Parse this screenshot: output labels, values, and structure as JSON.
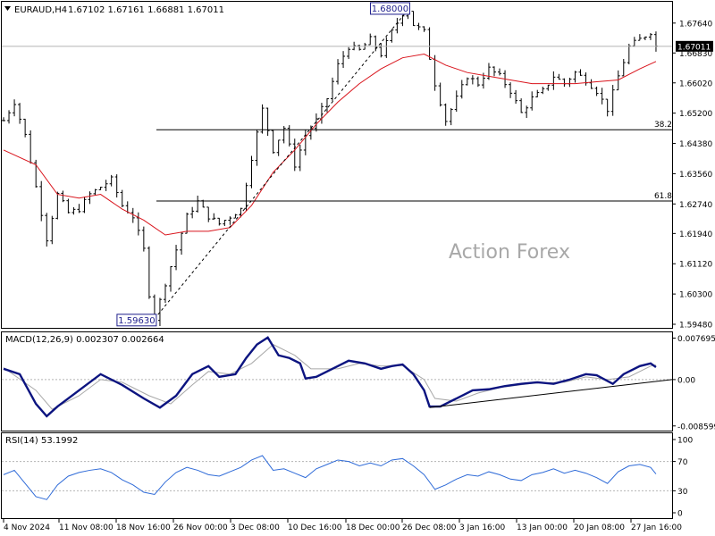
{
  "chart_data": [
    {
      "type": "ohlc",
      "panel": "price",
      "title": "EURAUD,H4",
      "ohlc_header": [
        "1.67102",
        "1.67161",
        "1.66881",
        "1.67011"
      ],
      "current_price": "1.67011",
      "ylim": [
        1.5948,
        1.6812
      ],
      "y_ticks": [
        "1.67640",
        "1.66830",
        "1.66020",
        "1.65200",
        "1.64380",
        "1.63560",
        "1.62740",
        "1.61940",
        "1.61120",
        "1.60300",
        "1.59480"
      ],
      "x_ticks": [
        "4 Nov 2024",
        "11 Nov 08:00",
        "18 Nov 16:00",
        "26 Nov 00:00",
        "3 Dec 08:00",
        "10 Dec 16:00",
        "18 Dec 00:00",
        "26 Dec 08:00",
        "3 Jan 16:00",
        "13 Jan 00:00",
        "20 Jan 08:00",
        "27 Jan 16:00"
      ],
      "price_path": [
        [
          0,
          1.65
        ],
        [
          2,
          1.655
        ],
        [
          4,
          1.646
        ],
        [
          6,
          1.632
        ],
        [
          8,
          1.618
        ],
        [
          10,
          1.63
        ],
        [
          12,
          1.625
        ],
        [
          14,
          1.626
        ],
        [
          16,
          1.63
        ],
        [
          18,
          1.632
        ],
        [
          20,
          1.634
        ],
        [
          22,
          1.627
        ],
        [
          24,
          1.624
        ],
        [
          26,
          1.615
        ],
        [
          27,
          1.603
        ],
        [
          28,
          1.5963
        ],
        [
          30,
          1.606
        ],
        [
          32,
          1.615
        ],
        [
          34,
          1.624
        ],
        [
          36,
          1.628
        ],
        [
          38,
          1.624
        ],
        [
          40,
          1.622
        ],
        [
          42,
          1.624
        ],
        [
          44,
          1.626
        ],
        [
          46,
          1.64
        ],
        [
          48,
          1.653
        ],
        [
          50,
          1.642
        ],
        [
          52,
          1.648
        ],
        [
          54,
          1.638
        ],
        [
          56,
          1.646
        ],
        [
          58,
          1.65
        ],
        [
          60,
          1.656
        ],
        [
          62,
          1.665
        ],
        [
          64,
          1.67
        ],
        [
          66,
          1.669
        ],
        [
          68,
          1.672
        ],
        [
          70,
          1.668
        ],
        [
          72,
          1.674
        ],
        [
          74,
          1.679
        ],
        [
          75,
          1.68
        ],
        [
          76,
          1.676
        ],
        [
          78,
          1.674
        ],
        [
          80,
          1.66
        ],
        [
          82,
          1.65
        ],
        [
          84,
          1.656
        ],
        [
          86,
          1.662
        ],
        [
          88,
          1.66
        ],
        [
          90,
          1.664
        ],
        [
          92,
          1.662
        ],
        [
          94,
          1.658
        ],
        [
          96,
          1.652
        ],
        [
          98,
          1.656
        ],
        [
          100,
          1.658
        ],
        [
          102,
          1.662
        ],
        [
          104,
          1.66
        ],
        [
          106,
          1.663
        ],
        [
          108,
          1.661
        ],
        [
          110,
          1.658
        ],
        [
          112,
          1.653
        ],
        [
          114,
          1.662
        ],
        [
          116,
          1.67
        ],
        [
          118,
          1.672
        ],
        [
          120,
          1.674
        ],
        [
          121,
          1.6701
        ]
      ],
      "ma_path": [
        [
          0,
          1.642
        ],
        [
          6,
          1.638
        ],
        [
          10,
          1.63
        ],
        [
          14,
          1.629
        ],
        [
          18,
          1.63
        ],
        [
          22,
          1.626
        ],
        [
          26,
          1.623
        ],
        [
          30,
          1.619
        ],
        [
          34,
          1.62
        ],
        [
          38,
          1.62
        ],
        [
          42,
          1.621
        ],
        [
          46,
          1.627
        ],
        [
          50,
          1.636
        ],
        [
          54,
          1.642
        ],
        [
          58,
          1.649
        ],
        [
          62,
          1.655
        ],
        [
          66,
          1.66
        ],
        [
          70,
          1.664
        ],
        [
          74,
          1.667
        ],
        [
          78,
          1.668
        ],
        [
          82,
          1.665
        ],
        [
          86,
          1.663
        ],
        [
          90,
          1.662
        ],
        [
          94,
          1.661
        ],
        [
          98,
          1.66
        ],
        [
          102,
          1.66
        ],
        [
          106,
          1.66
        ],
        [
          110,
          1.6605
        ],
        [
          114,
          1.661
        ],
        [
          118,
          1.664
        ],
        [
          121,
          1.666
        ]
      ],
      "annotations": [
        {
          "label": "1.68000",
          "bar": 75,
          "price": 1.68
        },
        {
          "label": "1.59630",
          "bar": 28,
          "price": 1.5963
        }
      ],
      "fib_levels": [
        {
          "label": "38.2",
          "price": 1.6475
        },
        {
          "label": "61.8",
          "price": 1.6282
        }
      ],
      "trendline": [
        [
          28,
          1.5963
        ],
        [
          75,
          1.68
        ]
      ],
      "watermark": "Action Forex",
      "colors": {
        "bars": "#000000",
        "ma": "#d9141c",
        "grid": "#b4b4b4"
      }
    },
    {
      "type": "line",
      "panel": "macd",
      "title": "MACD(12,26,9) 0.002307 0.002664",
      "ylim": [
        -0.0088,
        0.0081
      ],
      "y_ticks": [
        "0.007695",
        "0.00",
        "-0.008599"
      ],
      "macd_path": [
        [
          0,
          0.002
        ],
        [
          3,
          0.001
        ],
        [
          6,
          -0.0045
        ],
        [
          8,
          -0.0068
        ],
        [
          10,
          -0.005
        ],
        [
          14,
          -0.002
        ],
        [
          18,
          0.001
        ],
        [
          20,
          0.0
        ],
        [
          22,
          -0.001
        ],
        [
          26,
          -0.0035
        ],
        [
          29,
          -0.0052
        ],
        [
          32,
          -0.003
        ],
        [
          35,
          0.001
        ],
        [
          38,
          0.0025
        ],
        [
          40,
          0.0005
        ],
        [
          43,
          0.001
        ],
        [
          45,
          0.004
        ],
        [
          47,
          0.0065
        ],
        [
          49,
          0.0078
        ],
        [
          51,
          0.0045
        ],
        [
          53,
          0.004
        ],
        [
          55,
          0.003
        ],
        [
          56,
          0.0002
        ],
        [
          58,
          0.0005
        ],
        [
          60,
          0.0015
        ],
        [
          62,
          0.0025
        ],
        [
          64,
          0.0035
        ],
        [
          67,
          0.003
        ],
        [
          70,
          0.002
        ],
        [
          72,
          0.0025
        ],
        [
          74,
          0.0028
        ],
        [
          76,
          0.001
        ],
        [
          78,
          -0.002
        ],
        [
          79,
          -0.005
        ],
        [
          81,
          -0.005
        ],
        [
          84,
          -0.0035
        ],
        [
          87,
          -0.002
        ],
        [
          90,
          -0.0018
        ],
        [
          93,
          -0.0012
        ],
        [
          96,
          -0.0008
        ],
        [
          99,
          -0.0005
        ],
        [
          102,
          -0.0008
        ],
        [
          105,
          0.0
        ],
        [
          108,
          0.001
        ],
        [
          110,
          0.0008
        ],
        [
          113,
          -0.0008
        ],
        [
          115,
          0.001
        ],
        [
          118,
          0.0025
        ],
        [
          120,
          0.003
        ],
        [
          121,
          0.0023
        ]
      ],
      "signal_path": [
        [
          0,
          0.0022
        ],
        [
          6,
          -0.002
        ],
        [
          9,
          -0.0055
        ],
        [
          14,
          -0.003
        ],
        [
          18,
          0.0
        ],
        [
          22,
          -0.0005
        ],
        [
          27,
          -0.003
        ],
        [
          31,
          -0.0045
        ],
        [
          35,
          -0.001
        ],
        [
          38,
          0.0015
        ],
        [
          42,
          0.001
        ],
        [
          46,
          0.003
        ],
        [
          50,
          0.0065
        ],
        [
          54,
          0.0045
        ],
        [
          57,
          0.002
        ],
        [
          62,
          0.002
        ],
        [
          66,
          0.003
        ],
        [
          70,
          0.0025
        ],
        [
          74,
          0.0026
        ],
        [
          78,
          0.0
        ],
        [
          80,
          -0.0035
        ],
        [
          84,
          -0.004
        ],
        [
          88,
          -0.0025
        ],
        [
          92,
          -0.0015
        ],
        [
          98,
          -0.0007
        ],
        [
          104,
          -0.0005
        ],
        [
          108,
          0.0005
        ],
        [
          112,
          0.0
        ],
        [
          116,
          0.0005
        ],
        [
          120,
          0.0025
        ],
        [
          121,
          0.0027
        ]
      ],
      "trendline": [
        [
          79,
          -0.0052
        ],
        [
          122,
          0.0
        ]
      ],
      "colors": {
        "macd": "#0c1480",
        "signal": "#a8a8a8"
      }
    },
    {
      "type": "line",
      "panel": "rsi",
      "title": "RSI(14) 53.1992",
      "ylim": [
        0,
        100
      ],
      "y_ticks": [
        "100",
        "70",
        "30",
        "0"
      ],
      "rsi_path": [
        [
          0,
          52
        ],
        [
          2,
          58
        ],
        [
          4,
          40
        ],
        [
          6,
          22
        ],
        [
          8,
          18
        ],
        [
          10,
          38
        ],
        [
          12,
          50
        ],
        [
          14,
          55
        ],
        [
          16,
          58
        ],
        [
          18,
          60
        ],
        [
          20,
          55
        ],
        [
          22,
          45
        ],
        [
          24,
          38
        ],
        [
          26,
          28
        ],
        [
          28,
          25
        ],
        [
          30,
          42
        ],
        [
          32,
          55
        ],
        [
          34,
          62
        ],
        [
          36,
          58
        ],
        [
          38,
          52
        ],
        [
          40,
          50
        ],
        [
          42,
          56
        ],
        [
          44,
          62
        ],
        [
          46,
          72
        ],
        [
          48,
          78
        ],
        [
          50,
          58
        ],
        [
          52,
          60
        ],
        [
          54,
          54
        ],
        [
          56,
          48
        ],
        [
          58,
          60
        ],
        [
          60,
          66
        ],
        [
          62,
          72
        ],
        [
          64,
          70
        ],
        [
          66,
          64
        ],
        [
          68,
          68
        ],
        [
          70,
          64
        ],
        [
          72,
          72
        ],
        [
          74,
          74
        ],
        [
          76,
          64
        ],
        [
          78,
          52
        ],
        [
          80,
          32
        ],
        [
          82,
          38
        ],
        [
          84,
          46
        ],
        [
          86,
          52
        ],
        [
          88,
          50
        ],
        [
          90,
          56
        ],
        [
          92,
          52
        ],
        [
          94,
          46
        ],
        [
          96,
          44
        ],
        [
          98,
          52
        ],
        [
          100,
          55
        ],
        [
          102,
          60
        ],
        [
          104,
          54
        ],
        [
          106,
          58
        ],
        [
          108,
          54
        ],
        [
          110,
          48
        ],
        [
          112,
          40
        ],
        [
          114,
          56
        ],
        [
          116,
          64
        ],
        [
          118,
          66
        ],
        [
          120,
          62
        ],
        [
          121,
          53
        ]
      ],
      "levels": [
        70,
        30
      ],
      "colors": {
        "rsi": "#2f6bd8"
      }
    }
  ]
}
